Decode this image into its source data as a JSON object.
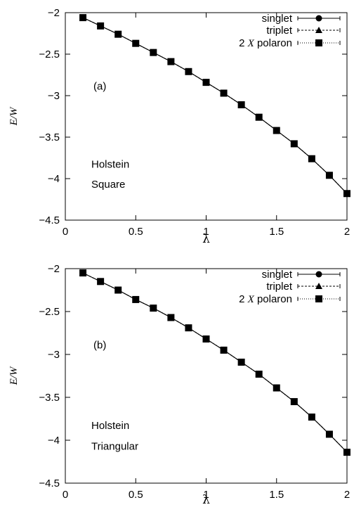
{
  "chart_data": [
    {
      "type": "line",
      "panel": "(a)",
      "annotations": [
        "Holstein",
        "Square"
      ],
      "xlabel": "λ",
      "ylabel": "E/W",
      "xlim": [
        0,
        2
      ],
      "ylim": [
        -4.5,
        -2
      ],
      "xticks": [
        "0",
        "0.5",
        "1",
        "1.5",
        "2"
      ],
      "yticks": [
        "-2",
        "-2.5",
        "-3",
        "-3.5",
        "-4",
        "-4.5"
      ],
      "legend_position": "top-right",
      "x": [
        0.125,
        0.25,
        0.375,
        0.5,
        0.625,
        0.75,
        0.875,
        1.0,
        1.125,
        1.25,
        1.375,
        1.5,
        1.625,
        1.75,
        1.875,
        2.0
      ],
      "series": [
        {
          "name": "singlet",
          "marker": "circle",
          "line": "solid",
          "values": [
            -2.06,
            -2.16,
            -2.26,
            -2.37,
            -2.48,
            -2.59,
            -2.71,
            -2.84,
            -2.97,
            -3.11,
            -3.26,
            -3.42,
            -3.58,
            -3.76,
            -3.96,
            -4.18
          ]
        },
        {
          "name": "triplet",
          "marker": "triangle",
          "line": "dashed",
          "values": [
            -2.06,
            -2.16,
            -2.26,
            -2.37,
            -2.48,
            -2.59,
            -2.71,
            -2.84,
            -2.97,
            -3.11,
            -3.26,
            -3.42,
            -3.58,
            -3.76,
            -3.96,
            -4.18
          ]
        },
        {
          "name_parts": [
            "2 ",
            "X",
            " polaron"
          ],
          "marker": "square",
          "line": "dotted",
          "values": [
            -2.06,
            -2.16,
            -2.26,
            -2.37,
            -2.48,
            -2.59,
            -2.71,
            -2.84,
            -2.97,
            -3.11,
            -3.26,
            -3.42,
            -3.58,
            -3.76,
            -3.96,
            -4.18
          ]
        }
      ]
    },
    {
      "type": "line",
      "panel": "(b)",
      "annotations": [
        "Holstein",
        "Triangular"
      ],
      "xlabel": "λ",
      "ylabel": "E/W",
      "xlim": [
        0,
        2
      ],
      "ylim": [
        -4.5,
        -2
      ],
      "xticks": [
        "0",
        "0.5",
        "1",
        "1.5",
        "2"
      ],
      "yticks": [
        "-2",
        "-2.5",
        "-3",
        "-3.5",
        "-4",
        "-4.5"
      ],
      "legend_position": "top-right",
      "x": [
        0.125,
        0.25,
        0.375,
        0.5,
        0.625,
        0.75,
        0.875,
        1.0,
        1.125,
        1.25,
        1.375,
        1.5,
        1.625,
        1.75,
        1.875,
        2.0
      ],
      "series": [
        {
          "name": "singlet",
          "marker": "circle",
          "line": "solid",
          "values": [
            -2.05,
            -2.15,
            -2.25,
            -2.36,
            -2.46,
            -2.57,
            -2.69,
            -2.82,
            -2.95,
            -3.09,
            -3.23,
            -3.39,
            -3.55,
            -3.73,
            -3.93,
            -4.14
          ]
        },
        {
          "name": "triplet",
          "marker": "triangle",
          "line": "dashed",
          "values": [
            -2.05,
            -2.15,
            -2.25,
            -2.36,
            -2.46,
            -2.57,
            -2.69,
            -2.82,
            -2.95,
            -3.09,
            -3.23,
            -3.39,
            -3.55,
            -3.73,
            -3.93,
            -4.14
          ]
        },
        {
          "name_parts": [
            "2 ",
            "X",
            " polaron"
          ],
          "marker": "square",
          "line": "dotted",
          "values": [
            -2.05,
            -2.15,
            -2.25,
            -2.36,
            -2.46,
            -2.57,
            -2.69,
            -2.82,
            -2.95,
            -3.09,
            -3.23,
            -3.39,
            -3.55,
            -3.73,
            -3.93,
            -4.14
          ]
        }
      ]
    }
  ]
}
